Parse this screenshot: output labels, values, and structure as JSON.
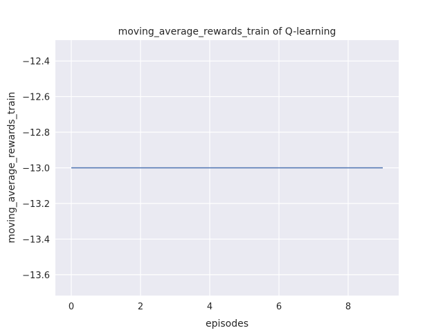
{
  "chart_data": {
    "type": "line",
    "title": "moving_average_rewards_train of Q-learning",
    "xlabel": "episodes",
    "ylabel": "moving_average_rewards_train",
    "x": [
      0,
      1,
      2,
      3,
      4,
      5,
      6,
      7,
      8,
      9
    ],
    "series": [
      {
        "values": [
          -13,
          -13,
          -13,
          -13,
          -13,
          -13,
          -13,
          -13,
          -13,
          -13
        ],
        "color": "#4c72b0"
      }
    ],
    "xlim": [
      -0.46,
      9.46
    ],
    "ylim": [
      -13.717,
      -12.283
    ],
    "xticks": [
      0,
      2,
      4,
      6,
      8
    ],
    "xtick_labels": [
      "0",
      "2",
      "4",
      "6",
      "8"
    ],
    "yticks": [
      -12.4,
      -12.6,
      -12.8,
      -13.0,
      -13.2,
      -13.4,
      -13.6
    ],
    "ytick_labels": [
      "−12.4",
      "−12.6",
      "−12.8",
      "−13.0",
      "−13.2",
      "−13.4",
      "−13.6"
    ],
    "grid": true,
    "background": "#eaeaf2",
    "grid_color": "#ffffff"
  }
}
